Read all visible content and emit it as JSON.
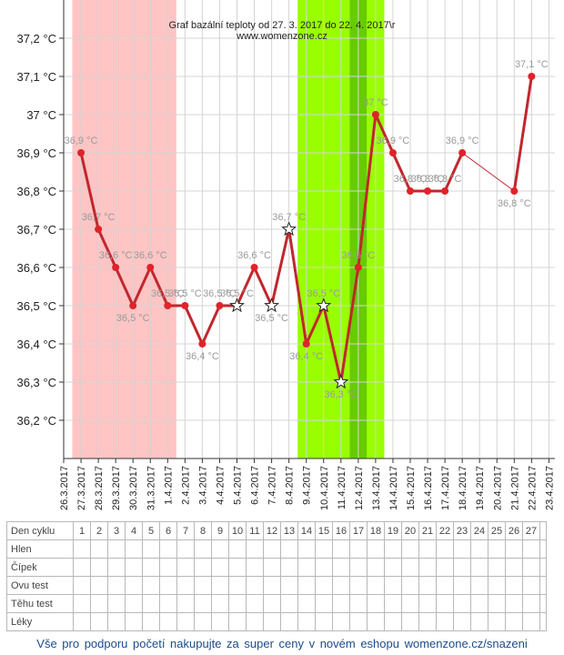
{
  "chart_data": {
    "type": "line",
    "title": "Graf bazální teploty od 27. 3. 2017 do 22. 4. 2017\\r",
    "subtitle": "www.womenzone.cz",
    "unit": "°C",
    "ylim": [
      36.1,
      37.3
    ],
    "y_ticks": [
      "36,2 °C",
      "36,3 °C",
      "36,4 °C",
      "36,5 °C",
      "36,6 °C",
      "36,7 °C",
      "36,8 °C",
      "36,9 °C",
      "37 °C",
      "37,1 °C",
      "37,2 °C"
    ],
    "y_tick_values": [
      36.2,
      36.3,
      36.4,
      36.5,
      36.6,
      36.7,
      36.8,
      36.9,
      37.0,
      37.1,
      37.2
    ],
    "x_ticks": [
      "26.3.2017",
      "27.3.2017",
      "28.3.2017",
      "29.3.2017",
      "30.3.2017",
      "31.3.2017",
      "1.4.2017",
      "2.4.2017",
      "3.4.2017",
      "4.4.2017",
      "5.4.2017",
      "6.4.2017",
      "7.4.2017",
      "8.4.2017",
      "9.4.2017",
      "10.4.2017",
      "11.4.2017",
      "12.4.2017",
      "13.4.2017",
      "14.4.2017",
      "15.4.2017",
      "16.4.2017",
      "17.4.2017",
      "18.4.2017",
      "19.4.2017",
      "20.4.2017",
      "21.4.2017",
      "22.4.2017",
      "23.4.2017"
    ],
    "grid": true,
    "line_color": "#c0272d",
    "points": [
      {
        "day": 1,
        "value": 36.9,
        "label": "36,9 °C",
        "marker": "dot"
      },
      {
        "day": 2,
        "value": 36.7,
        "label": "36,7 °C",
        "marker": "dot"
      },
      {
        "day": 3,
        "value": 36.6,
        "label": "36,6 °C",
        "marker": "dot"
      },
      {
        "day": 4,
        "value": 36.5,
        "label": "36,5 °C",
        "marker": "dot"
      },
      {
        "day": 5,
        "value": 36.6,
        "label": "36,6 °C",
        "marker": "dot"
      },
      {
        "day": 6,
        "value": 36.5,
        "label": "36,5 °C",
        "marker": "dot"
      },
      {
        "day": 7,
        "value": 36.5,
        "label": "36,5 °C",
        "marker": "dot"
      },
      {
        "day": 8,
        "value": 36.4,
        "label": "36,4 °C",
        "marker": "dot"
      },
      {
        "day": 9,
        "value": 36.5,
        "label": "36,5 °C",
        "marker": "dot"
      },
      {
        "day": 10,
        "value": 36.5,
        "label": "36,5 °C",
        "marker": "star"
      },
      {
        "day": 11,
        "value": 36.6,
        "label": "36,6 °C",
        "marker": "dot"
      },
      {
        "day": 12,
        "value": 36.5,
        "label": "36,5 °C",
        "marker": "star"
      },
      {
        "day": 13,
        "value": 36.7,
        "label": "36,7 °C",
        "marker": "star"
      },
      {
        "day": 14,
        "value": 36.4,
        "label": "36,4 °C",
        "marker": "dot"
      },
      {
        "day": 15,
        "value": 36.5,
        "label": "36,5 °C",
        "marker": "star"
      },
      {
        "day": 16,
        "value": 36.3,
        "label": "36,3 °C",
        "marker": "star"
      },
      {
        "day": 17,
        "value": 36.6,
        "label": "36,6 °C",
        "marker": "dot"
      },
      {
        "day": 18,
        "value": 37.0,
        "label": "37 °C",
        "marker": "dot"
      },
      {
        "day": 19,
        "value": 36.9,
        "label": "36,9 °C",
        "marker": "dot"
      },
      {
        "day": 20,
        "value": 36.8,
        "label": "36,8 °C",
        "marker": "dot"
      },
      {
        "day": 21,
        "value": 36.8,
        "label": "36,8 °C",
        "marker": "dot"
      },
      {
        "day": 22,
        "value": 36.8,
        "label": "36,8 °C",
        "marker": "dot"
      },
      {
        "day": 23,
        "value": 36.9,
        "label": "36,9 °C",
        "marker": "dot"
      },
      {
        "day": 26,
        "value": 36.8,
        "label": "36,8 °C",
        "marker": "dot"
      },
      {
        "day": 27,
        "value": 37.1,
        "label": "37,1 °C",
        "marker": "dot"
      }
    ],
    "bands": [
      {
        "from_day": 1,
        "to_day": 6,
        "color": "#ffc4c4"
      },
      {
        "from_day": 14,
        "to_day": 16,
        "color": "#99ff00"
      },
      {
        "from_day": 17,
        "to_day": 17,
        "color": "#66cc00"
      },
      {
        "from_day": 18,
        "to_day": 18,
        "color": "#99ff00"
      }
    ],
    "gap_after_day": 23
  },
  "table": {
    "rows": [
      "Den cyklu",
      "Hlen",
      "Čípek",
      "Ovu test",
      "Těhu test",
      "Léky"
    ],
    "days": [
      "1",
      "2",
      "3",
      "4",
      "5",
      "6",
      "7",
      "8",
      "9",
      "10",
      "11",
      "12",
      "13",
      "14",
      "15",
      "16",
      "17",
      "18",
      "19",
      "20",
      "21",
      "22",
      "23",
      "24",
      "25",
      "26",
      "27"
    ]
  },
  "footer": "Vše pro podporu početí nakupujte za super ceny v novém eshopu womenzone.cz/snazeni"
}
